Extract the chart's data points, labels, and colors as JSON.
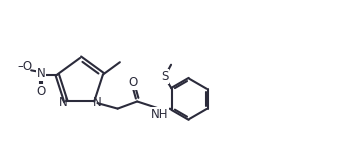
{
  "bg_color": "#ffffff",
  "line_color": "#2b2b3b",
  "line_width": 1.5,
  "font_size": 8.5,
  "figsize": [
    3.52,
    1.64
  ],
  "dpi": 100,
  "xlim": [
    0,
    10.5
  ],
  "ylim": [
    0,
    5
  ]
}
